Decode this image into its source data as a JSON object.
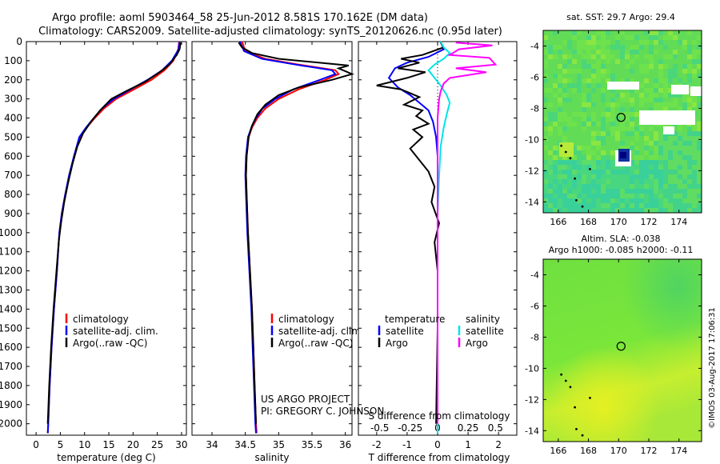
{
  "header": {
    "line1": "Argo profile: aoml 5903464_58 25-Jun-2012 8.581S 170.162E (DM data)",
    "line2": "Climatology: CARS2009. Satellite-adjusted climatology: synTS_20120626.nc (0.95d later)"
  },
  "colors": {
    "climatology": "#ff0000",
    "satellite": "#0000ff",
    "argo": "#000000",
    "sat_salinity": "#00e5e5",
    "argo_salinity": "#ff00ff"
  },
  "chart_data": [
    {
      "type": "line",
      "id": "temperature",
      "xlabel": "temperature (deg C)",
      "ylabel": "",
      "xlim": [
        -2,
        31
      ],
      "ylim": [
        2060,
        0
      ],
      "xticks": [
        0,
        5,
        10,
        15,
        20,
        25,
        30
      ],
      "yticks": [
        0,
        100,
        200,
        300,
        400,
        500,
        600,
        700,
        800,
        900,
        1000,
        1100,
        1200,
        1300,
        1400,
        1500,
        1600,
        1700,
        1800,
        1900,
        2000
      ],
      "legend": [
        "climatology",
        "satellite-adj. clim.",
        "Argo(..raw -QC)"
      ],
      "series": [
        {
          "name": "climatology",
          "color": "#ff0000",
          "points": [
            [
              29.5,
              0
            ],
            [
              29.3,
              40
            ],
            [
              28.3,
              100
            ],
            [
              26.5,
              150
            ],
            [
              23.8,
              200
            ],
            [
              20.2,
              250
            ],
            [
              16.5,
              300
            ],
            [
              14.0,
              350
            ],
            [
              12.1,
              400
            ],
            [
              10.4,
              450
            ],
            [
              9.0,
              500
            ],
            [
              7.9,
              600
            ],
            [
              6.9,
              700
            ],
            [
              6.0,
              800
            ],
            [
              5.3,
              900
            ],
            [
              4.8,
              1000
            ],
            [
              4.3,
              1200
            ],
            [
              3.7,
              1400
            ],
            [
              3.2,
              1600
            ],
            [
              2.8,
              1800
            ],
            [
              2.5,
              2000
            ],
            [
              2.4,
              2050
            ]
          ]
        },
        {
          "name": "satellite-adj. clim.",
          "color": "#0000ff",
          "points": [
            [
              29.6,
              0
            ],
            [
              29.4,
              40
            ],
            [
              28.0,
              100
            ],
            [
              26.0,
              150
            ],
            [
              23.0,
              200
            ],
            [
              19.5,
              250
            ],
            [
              16.0,
              300
            ],
            [
              13.6,
              350
            ],
            [
              11.9,
              400
            ],
            [
              10.3,
              450
            ],
            [
              8.9,
              500
            ],
            [
              7.8,
              600
            ],
            [
              6.8,
              700
            ],
            [
              6.0,
              800
            ],
            [
              5.3,
              900
            ],
            [
              4.8,
              1000
            ],
            [
              4.3,
              1200
            ],
            [
              3.7,
              1400
            ],
            [
              3.2,
              1600
            ],
            [
              2.8,
              1800
            ],
            [
              2.5,
              2000
            ],
            [
              2.4,
              2050
            ]
          ]
        },
        {
          "name": "Argo(..raw -QC)",
          "color": "#000000",
          "points": [
            [
              29.8,
              5
            ],
            [
              29.6,
              40
            ],
            [
              29.0,
              70
            ],
            [
              27.5,
              120
            ],
            [
              25.5,
              160
            ],
            [
              22.5,
              210
            ],
            [
              18.5,
              260
            ],
            [
              15.5,
              300
            ],
            [
              13.2,
              360
            ],
            [
              11.3,
              420
            ],
            [
              9.7,
              480
            ],
            [
              8.5,
              550
            ],
            [
              7.5,
              640
            ],
            [
              6.6,
              740
            ],
            [
              5.8,
              840
            ],
            [
              5.2,
              940
            ],
            [
              4.7,
              1040
            ],
            [
              4.2,
              1200
            ],
            [
              3.6,
              1400
            ],
            [
              3.1,
              1600
            ],
            [
              2.7,
              1800
            ],
            [
              2.4,
              2000
            ]
          ]
        }
      ]
    },
    {
      "type": "line",
      "id": "salinity",
      "xlabel": "salinity",
      "ylabel": "",
      "xlim": [
        33.7,
        36.1
      ],
      "ylim": [
        2060,
        0
      ],
      "xticks": [
        34,
        34.5,
        35,
        35.5,
        36
      ],
      "legend": [
        "climatology",
        "satellite-adj. clim.",
        "Argo(..raw -QC)"
      ],
      "series": [
        {
          "name": "climatology",
          "color": "#ff0000",
          "points": [
            [
              34.45,
              0
            ],
            [
              34.5,
              50
            ],
            [
              34.8,
              90
            ],
            [
              35.3,
              120
            ],
            [
              35.85,
              150
            ],
            [
              35.9,
              170
            ],
            [
              35.7,
              200
            ],
            [
              35.3,
              250
            ],
            [
              35.0,
              300
            ],
            [
              34.8,
              350
            ],
            [
              34.68,
              400
            ],
            [
              34.6,
              450
            ],
            [
              34.55,
              500
            ],
            [
              34.52,
              600
            ],
            [
              34.51,
              700
            ],
            [
              34.52,
              800
            ],
            [
              34.54,
              1000
            ],
            [
              34.57,
              1200
            ],
            [
              34.6,
              1400
            ],
            [
              34.62,
              1600
            ],
            [
              34.64,
              1800
            ],
            [
              34.66,
              2000
            ],
            [
              34.67,
              2050
            ]
          ]
        },
        {
          "name": "satellite-adj. clim.",
          "color": "#0000ff",
          "points": [
            [
              34.42,
              0
            ],
            [
              34.48,
              50
            ],
            [
              34.75,
              90
            ],
            [
              35.25,
              120
            ],
            [
              35.8,
              150
            ],
            [
              35.85,
              170
            ],
            [
              35.62,
              200
            ],
            [
              35.22,
              250
            ],
            [
              34.95,
              300
            ],
            [
              34.76,
              350
            ],
            [
              34.66,
              400
            ],
            [
              34.59,
              450
            ],
            [
              34.54,
              500
            ],
            [
              34.51,
              600
            ],
            [
              34.5,
              700
            ],
            [
              34.51,
              800
            ],
            [
              34.53,
              1000
            ],
            [
              34.56,
              1200
            ],
            [
              34.59,
              1400
            ],
            [
              34.61,
              1600
            ],
            [
              34.63,
              1800
            ],
            [
              34.65,
              2000
            ],
            [
              34.66,
              2050
            ]
          ]
        },
        {
          "name": "Argo(..raw -QC)",
          "color": "#000000",
          "points": [
            [
              34.4,
              5
            ],
            [
              34.45,
              30
            ],
            [
              34.6,
              60
            ],
            [
              35.0,
              90
            ],
            [
              35.6,
              110
            ],
            [
              36.05,
              125
            ],
            [
              35.9,
              140
            ],
            [
              36.1,
              170
            ],
            [
              35.8,
              200
            ],
            [
              35.3,
              240
            ],
            [
              35.0,
              280
            ],
            [
              34.8,
              330
            ],
            [
              34.68,
              380
            ],
            [
              34.6,
              440
            ],
            [
              34.55,
              500
            ],
            [
              34.52,
              600
            ],
            [
              34.51,
              700
            ],
            [
              34.52,
              800
            ],
            [
              34.54,
              1000
            ],
            [
              34.57,
              1200
            ],
            [
              34.6,
              1400
            ],
            [
              34.62,
              1600
            ],
            [
              34.64,
              1800
            ],
            [
              34.66,
              2000
            ]
          ]
        }
      ]
    },
    {
      "type": "line",
      "id": "difference",
      "xlabel": "T difference from climatology",
      "xlabel2": "S difference from climatology",
      "xlim": [
        -2.6,
        2.6
      ],
      "ylim": [
        2060,
        0
      ],
      "xticks_T": [
        -2,
        -1,
        0,
        1,
        2
      ],
      "xticks_S_labels": [
        "-0.5",
        "-0.25",
        "0",
        "0.25",
        "0.5"
      ],
      "xticks_S_pos": [
        -1.9,
        -0.9,
        0,
        1.0,
        1.9
      ],
      "legend_temperature": {
        "title": "temperature",
        "items": [
          "satellite",
          "Argo"
        ]
      },
      "legend_salinity": {
        "title": "salinity",
        "items": [
          "satellite",
          "Argo"
        ]
      },
      "series": [
        {
          "name": "T satellite",
          "color": "#0000ff",
          "points": [
            [
              0.1,
              0
            ],
            [
              0.2,
              40
            ],
            [
              -0.3,
              80
            ],
            [
              -1.0,
              110
            ],
            [
              -1.4,
              140
            ],
            [
              -1.6,
              190
            ],
            [
              -1.3,
              240
            ],
            [
              -0.9,
              280
            ],
            [
              -0.6,
              320
            ],
            [
              -0.3,
              360
            ],
            [
              -0.15,
              420
            ],
            [
              -0.05,
              500
            ],
            [
              0,
              600
            ],
            [
              0,
              1000
            ],
            [
              0,
              2050
            ]
          ]
        },
        {
          "name": "T Argo",
          "color": "#000000",
          "points": [
            [
              0.1,
              5
            ],
            [
              0.2,
              30
            ],
            [
              -0.5,
              70
            ],
            [
              -1.2,
              90
            ],
            [
              -0.6,
              110
            ],
            [
              -1.3,
              140
            ],
            [
              -0.4,
              160
            ],
            [
              -1.0,
              190
            ],
            [
              -2.0,
              230
            ],
            [
              -1.2,
              250
            ],
            [
              -0.6,
              290
            ],
            [
              -1.1,
              330
            ],
            [
              -0.5,
              360
            ],
            [
              -0.7,
              390
            ],
            [
              -0.3,
              430
            ],
            [
              -0.8,
              460
            ],
            [
              -0.5,
              500
            ],
            [
              -0.9,
              560
            ],
            [
              -0.6,
              620
            ],
            [
              -0.3,
              680
            ],
            [
              -0.1,
              760
            ],
            [
              -0.2,
              840
            ],
            [
              0.05,
              950
            ],
            [
              -0.1,
              1050
            ],
            [
              0,
              1200
            ],
            [
              0,
              1500
            ],
            [
              -0.05,
              2000
            ]
          ]
        },
        {
          "name": "S satellite",
          "color": "#00e5e5",
          "points": [
            [
              0.1,
              0
            ],
            [
              0.2,
              30
            ],
            [
              0.4,
              60
            ],
            [
              0.2,
              90
            ],
            [
              -0.1,
              120
            ],
            [
              -0.3,
              150
            ],
            [
              -0.1,
              190
            ],
            [
              0.1,
              230
            ],
            [
              0.3,
              280
            ],
            [
              0.4,
              320
            ],
            [
              0.3,
              380
            ],
            [
              0.2,
              450
            ],
            [
              0.1,
              550
            ],
            [
              0.05,
              700
            ],
            [
              0,
              900
            ],
            [
              0,
              2050
            ]
          ]
        },
        {
          "name": "S Argo",
          "color": "#ff00ff",
          "points": [
            [
              0.6,
              5
            ],
            [
              1.8,
              20
            ],
            [
              0.7,
              40
            ],
            [
              0.4,
              70
            ],
            [
              1.7,
              85
            ],
            [
              1.9,
              120
            ],
            [
              0.6,
              140
            ],
            [
              1.6,
              160
            ],
            [
              0.4,
              190
            ],
            [
              0.2,
              220
            ],
            [
              0.1,
              260
            ],
            [
              0.05,
              300
            ],
            [
              0,
              400
            ],
            [
              0,
              2000
            ]
          ]
        }
      ]
    },
    {
      "type": "heatmap",
      "id": "sst_map",
      "title": "sat. SST: 29.7  Argo: 29.4",
      "xlim": [
        165,
        175.5
      ],
      "ylim": [
        -14.7,
        -3
      ],
      "xticks": [
        166,
        168,
        170,
        172,
        174
      ],
      "yticks": [
        -4,
        -6,
        -8,
        -10,
        -12,
        -14
      ],
      "marker": {
        "x": 170.16,
        "y": -8.58
      }
    },
    {
      "type": "heatmap",
      "id": "sla_map",
      "title": "Altim. SLA: -0.038",
      "subtitle": "Argo h1000: -0.085 h2000: -0.11",
      "xlim": [
        165,
        175.5
      ],
      "ylim": [
        -14.7,
        -3
      ],
      "xticks": [
        166,
        168,
        170,
        172,
        174
      ],
      "yticks": [
        -4,
        -6,
        -8,
        -10,
        -12,
        -14
      ],
      "marker": {
        "x": 170.16,
        "y": -8.58
      }
    }
  ],
  "footer": {
    "project": "US ARGO PROJECT",
    "pi": "PI: GREGORY C. JOHNSON",
    "stamp": "©IMOS 03-Aug-2017 17:06:31"
  }
}
